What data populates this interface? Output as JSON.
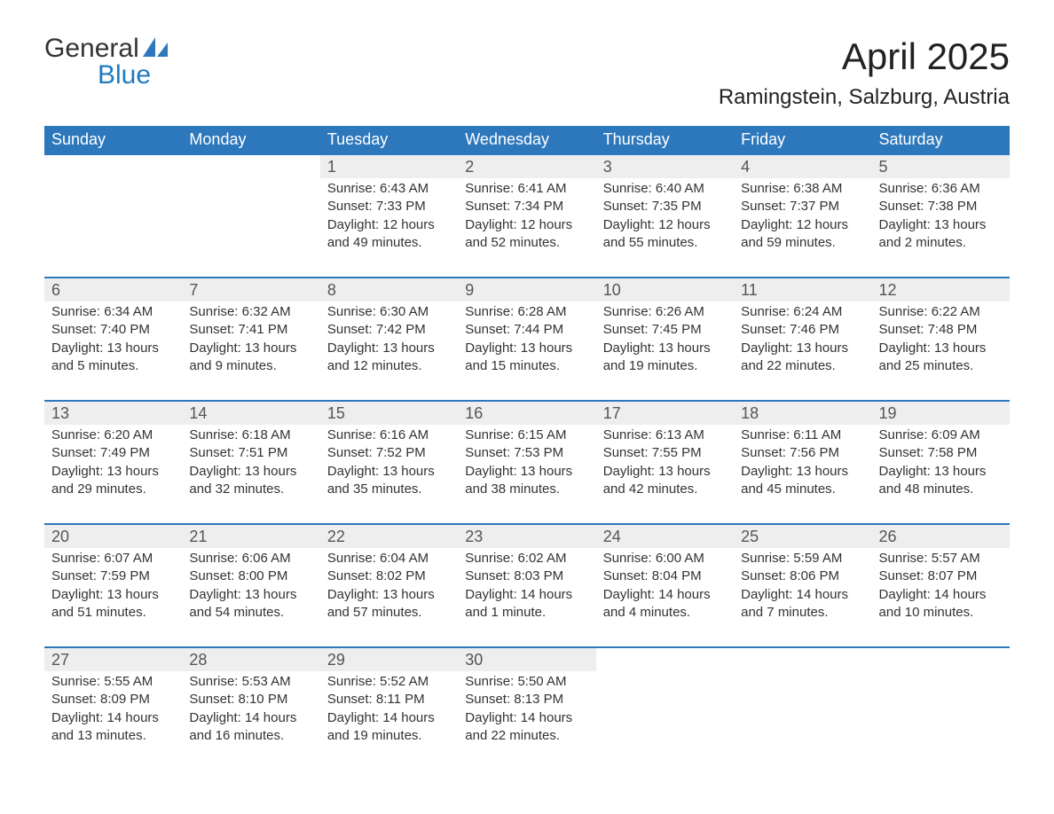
{
  "logo": {
    "text_general": "General",
    "text_blue": "Blue",
    "general_color": "#333333",
    "blue_color": "#1f7bc2"
  },
  "header": {
    "month_title": "April 2025",
    "location": "Ramingstein, Salzburg, Austria"
  },
  "colors": {
    "header_bg": "#2d78bd",
    "header_text": "#ffffff",
    "date_row_bg": "#eeeeee",
    "date_row_border": "#2d78bd",
    "body_text": "#333333"
  },
  "weekdays": [
    "Sunday",
    "Monday",
    "Tuesday",
    "Wednesday",
    "Thursday",
    "Friday",
    "Saturday"
  ],
  "weeks": [
    {
      "days": [
        null,
        null,
        {
          "date": "1",
          "sunrise": "Sunrise: 6:43 AM",
          "sunset": "Sunset: 7:33 PM",
          "daylight1": "Daylight: 12 hours",
          "daylight2": "and 49 minutes."
        },
        {
          "date": "2",
          "sunrise": "Sunrise: 6:41 AM",
          "sunset": "Sunset: 7:34 PM",
          "daylight1": "Daylight: 12 hours",
          "daylight2": "and 52 minutes."
        },
        {
          "date": "3",
          "sunrise": "Sunrise: 6:40 AM",
          "sunset": "Sunset: 7:35 PM",
          "daylight1": "Daylight: 12 hours",
          "daylight2": "and 55 minutes."
        },
        {
          "date": "4",
          "sunrise": "Sunrise: 6:38 AM",
          "sunset": "Sunset: 7:37 PM",
          "daylight1": "Daylight: 12 hours",
          "daylight2": "and 59 minutes."
        },
        {
          "date": "5",
          "sunrise": "Sunrise: 6:36 AM",
          "sunset": "Sunset: 7:38 PM",
          "daylight1": "Daylight: 13 hours",
          "daylight2": "and 2 minutes."
        }
      ]
    },
    {
      "days": [
        {
          "date": "6",
          "sunrise": "Sunrise: 6:34 AM",
          "sunset": "Sunset: 7:40 PM",
          "daylight1": "Daylight: 13 hours",
          "daylight2": "and 5 minutes."
        },
        {
          "date": "7",
          "sunrise": "Sunrise: 6:32 AM",
          "sunset": "Sunset: 7:41 PM",
          "daylight1": "Daylight: 13 hours",
          "daylight2": "and 9 minutes."
        },
        {
          "date": "8",
          "sunrise": "Sunrise: 6:30 AM",
          "sunset": "Sunset: 7:42 PM",
          "daylight1": "Daylight: 13 hours",
          "daylight2": "and 12 minutes."
        },
        {
          "date": "9",
          "sunrise": "Sunrise: 6:28 AM",
          "sunset": "Sunset: 7:44 PM",
          "daylight1": "Daylight: 13 hours",
          "daylight2": "and 15 minutes."
        },
        {
          "date": "10",
          "sunrise": "Sunrise: 6:26 AM",
          "sunset": "Sunset: 7:45 PM",
          "daylight1": "Daylight: 13 hours",
          "daylight2": "and 19 minutes."
        },
        {
          "date": "11",
          "sunrise": "Sunrise: 6:24 AM",
          "sunset": "Sunset: 7:46 PM",
          "daylight1": "Daylight: 13 hours",
          "daylight2": "and 22 minutes."
        },
        {
          "date": "12",
          "sunrise": "Sunrise: 6:22 AM",
          "sunset": "Sunset: 7:48 PM",
          "daylight1": "Daylight: 13 hours",
          "daylight2": "and 25 minutes."
        }
      ]
    },
    {
      "days": [
        {
          "date": "13",
          "sunrise": "Sunrise: 6:20 AM",
          "sunset": "Sunset: 7:49 PM",
          "daylight1": "Daylight: 13 hours",
          "daylight2": "and 29 minutes."
        },
        {
          "date": "14",
          "sunrise": "Sunrise: 6:18 AM",
          "sunset": "Sunset: 7:51 PM",
          "daylight1": "Daylight: 13 hours",
          "daylight2": "and 32 minutes."
        },
        {
          "date": "15",
          "sunrise": "Sunrise: 6:16 AM",
          "sunset": "Sunset: 7:52 PM",
          "daylight1": "Daylight: 13 hours",
          "daylight2": "and 35 minutes."
        },
        {
          "date": "16",
          "sunrise": "Sunrise: 6:15 AM",
          "sunset": "Sunset: 7:53 PM",
          "daylight1": "Daylight: 13 hours",
          "daylight2": "and 38 minutes."
        },
        {
          "date": "17",
          "sunrise": "Sunrise: 6:13 AM",
          "sunset": "Sunset: 7:55 PM",
          "daylight1": "Daylight: 13 hours",
          "daylight2": "and 42 minutes."
        },
        {
          "date": "18",
          "sunrise": "Sunrise: 6:11 AM",
          "sunset": "Sunset: 7:56 PM",
          "daylight1": "Daylight: 13 hours",
          "daylight2": "and 45 minutes."
        },
        {
          "date": "19",
          "sunrise": "Sunrise: 6:09 AM",
          "sunset": "Sunset: 7:58 PM",
          "daylight1": "Daylight: 13 hours",
          "daylight2": "and 48 minutes."
        }
      ]
    },
    {
      "days": [
        {
          "date": "20",
          "sunrise": "Sunrise: 6:07 AM",
          "sunset": "Sunset: 7:59 PM",
          "daylight1": "Daylight: 13 hours",
          "daylight2": "and 51 minutes."
        },
        {
          "date": "21",
          "sunrise": "Sunrise: 6:06 AM",
          "sunset": "Sunset: 8:00 PM",
          "daylight1": "Daylight: 13 hours",
          "daylight2": "and 54 minutes."
        },
        {
          "date": "22",
          "sunrise": "Sunrise: 6:04 AM",
          "sunset": "Sunset: 8:02 PM",
          "daylight1": "Daylight: 13 hours",
          "daylight2": "and 57 minutes."
        },
        {
          "date": "23",
          "sunrise": "Sunrise: 6:02 AM",
          "sunset": "Sunset: 8:03 PM",
          "daylight1": "Daylight: 14 hours",
          "daylight2": "and 1 minute."
        },
        {
          "date": "24",
          "sunrise": "Sunrise: 6:00 AM",
          "sunset": "Sunset: 8:04 PM",
          "daylight1": "Daylight: 14 hours",
          "daylight2": "and 4 minutes."
        },
        {
          "date": "25",
          "sunrise": "Sunrise: 5:59 AM",
          "sunset": "Sunset: 8:06 PM",
          "daylight1": "Daylight: 14 hours",
          "daylight2": "and 7 minutes."
        },
        {
          "date": "26",
          "sunrise": "Sunrise: 5:57 AM",
          "sunset": "Sunset: 8:07 PM",
          "daylight1": "Daylight: 14 hours",
          "daylight2": "and 10 minutes."
        }
      ]
    },
    {
      "days": [
        {
          "date": "27",
          "sunrise": "Sunrise: 5:55 AM",
          "sunset": "Sunset: 8:09 PM",
          "daylight1": "Daylight: 14 hours",
          "daylight2": "and 13 minutes."
        },
        {
          "date": "28",
          "sunrise": "Sunrise: 5:53 AM",
          "sunset": "Sunset: 8:10 PM",
          "daylight1": "Daylight: 14 hours",
          "daylight2": "and 16 minutes."
        },
        {
          "date": "29",
          "sunrise": "Sunrise: 5:52 AM",
          "sunset": "Sunset: 8:11 PM",
          "daylight1": "Daylight: 14 hours",
          "daylight2": "and 19 minutes."
        },
        {
          "date": "30",
          "sunrise": "Sunrise: 5:50 AM",
          "sunset": "Sunset: 8:13 PM",
          "daylight1": "Daylight: 14 hours",
          "daylight2": "and 22 minutes."
        },
        null,
        null,
        null
      ]
    }
  ]
}
